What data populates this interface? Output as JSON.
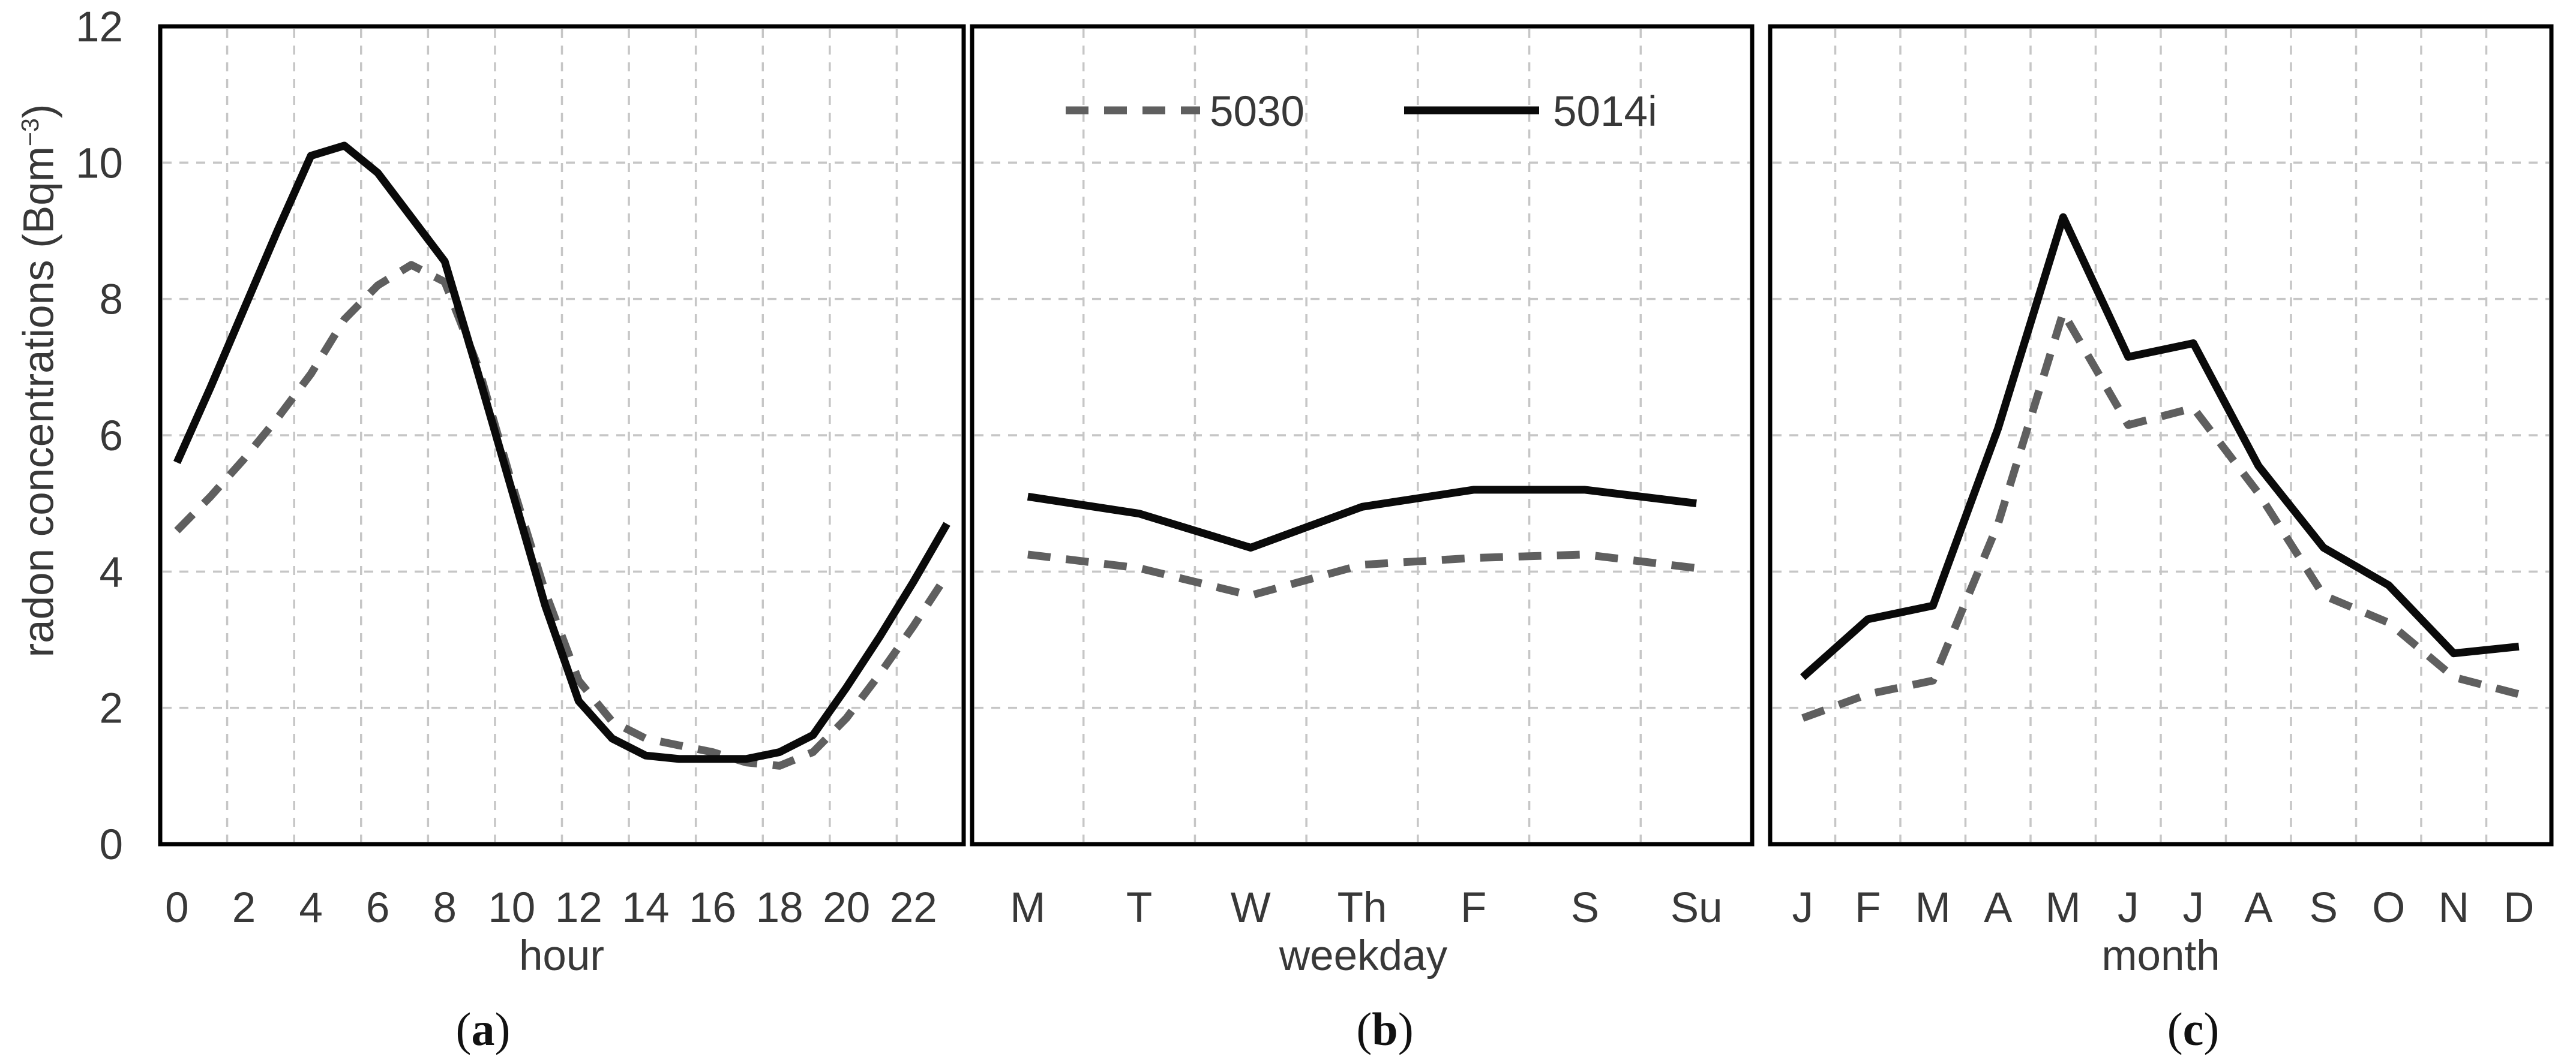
{
  "figure": {
    "ylabel": {
      "main": "radon concentrations (Bqm",
      "sup": "−3",
      "close": ")"
    },
    "y_axis_ticks": [
      "0",
      "2",
      "4",
      "6",
      "8",
      "10",
      "12"
    ],
    "legend": [
      {
        "label": "5030",
        "style": "dashed",
        "color": "#5f5f5f"
      },
      {
        "label": "5014i",
        "style": "solid",
        "color": "#0a0a0a"
      }
    ],
    "grid_color": "#c6c6c6",
    "border_color": "#000000"
  },
  "panel_letters": [
    {
      "open": "(",
      "letter": "a",
      "close": ")"
    },
    {
      "open": "(",
      "letter": "b",
      "close": ")"
    },
    {
      "open": "(",
      "letter": "c",
      "close": ")"
    }
  ],
  "chart_data": [
    {
      "type": "line",
      "panel": "a",
      "xlabel": "hour",
      "categories": [
        0,
        1,
        2,
        3,
        4,
        5,
        6,
        7,
        8,
        9,
        10,
        11,
        12,
        13,
        14,
        15,
        16,
        17,
        18,
        19,
        20,
        21,
        22,
        23
      ],
      "x_tick_labels": [
        "0",
        "2",
        "4",
        "6",
        "8",
        "10",
        "12",
        "14",
        "16",
        "18",
        "20",
        "22"
      ],
      "ylim": [
        0,
        12
      ],
      "y_ticks": [
        0,
        2,
        4,
        6,
        8,
        10,
        12
      ],
      "grid": true,
      "series": [
        {
          "name": "5030",
          "line_style": "dashed",
          "color": "#5f5f5f",
          "values": [
            4.6,
            5.1,
            5.65,
            6.25,
            6.9,
            7.7,
            8.2,
            8.5,
            8.25,
            7.0,
            5.3,
            3.7,
            2.4,
            1.8,
            1.55,
            1.45,
            1.35,
            1.2,
            1.15,
            1.35,
            1.85,
            2.5,
            3.2,
            3.95
          ]
        },
        {
          "name": "5014i",
          "line_style": "solid",
          "color": "#0a0a0a",
          "values": [
            5.6,
            6.7,
            7.85,
            9.0,
            10.1,
            10.25,
            9.85,
            9.2,
            8.55,
            6.9,
            5.2,
            3.5,
            2.1,
            1.55,
            1.3,
            1.25,
            1.25,
            1.25,
            1.35,
            1.6,
            2.3,
            3.05,
            3.85,
            4.7
          ]
        }
      ]
    },
    {
      "type": "line",
      "panel": "b",
      "xlabel": "weekday",
      "categories": [
        "M",
        "T",
        "W",
        "Th",
        "F",
        "S",
        "Su"
      ],
      "x_tick_labels": [
        "M",
        "T",
        "W",
        "Th",
        "F",
        "S",
        "Su"
      ],
      "ylim": [
        0,
        12
      ],
      "y_ticks": [
        0,
        2,
        4,
        6,
        8,
        10,
        12
      ],
      "grid": true,
      "series": [
        {
          "name": "5030",
          "line_style": "dashed",
          "color": "#5f5f5f",
          "values": [
            4.25,
            4.05,
            3.65,
            4.1,
            4.2,
            4.25,
            4.05
          ]
        },
        {
          "name": "5014i",
          "line_style": "solid",
          "color": "#0a0a0a",
          "values": [
            5.1,
            4.85,
            4.35,
            4.95,
            5.2,
            5.2,
            5.0
          ]
        }
      ]
    },
    {
      "type": "line",
      "panel": "c",
      "xlabel": "month",
      "categories": [
        "J",
        "F",
        "M",
        "A",
        "M",
        "J",
        "J",
        "A",
        "S",
        "O",
        "N",
        "D"
      ],
      "x_tick_labels": [
        "J",
        "F",
        "M",
        "A",
        "M",
        "J",
        "J",
        "A",
        "S",
        "O",
        "N",
        "D"
      ],
      "ylim": [
        0,
        12
      ],
      "y_ticks": [
        0,
        2,
        4,
        6,
        8,
        10,
        12
      ],
      "grid": true,
      "series": [
        {
          "name": "5030",
          "line_style": "dashed",
          "color": "#5f5f5f",
          "values": [
            1.85,
            2.2,
            2.4,
            4.7,
            7.8,
            6.15,
            6.4,
            5.15,
            3.65,
            3.25,
            2.45,
            2.2
          ]
        },
        {
          "name": "5014i",
          "line_style": "solid",
          "color": "#0a0a0a",
          "values": [
            2.45,
            3.3,
            3.5,
            6.1,
            9.2,
            7.15,
            7.35,
            5.55,
            4.35,
            3.8,
            2.8,
            2.9
          ]
        }
      ]
    }
  ]
}
